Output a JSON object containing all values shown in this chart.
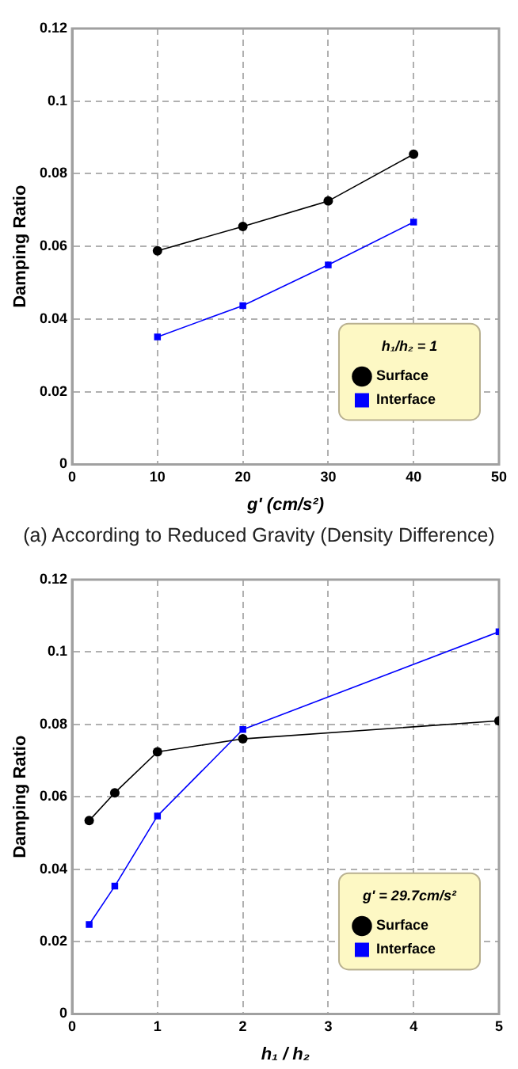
{
  "chart_data": [
    {
      "type": "line",
      "xlabel": "g' (cm/s²)",
      "ylabel": "Damping Ratio",
      "legend_title": "h₁/h₂ = 1",
      "x": [
        10,
        20,
        30,
        40
      ],
      "series": [
        {
          "name": "Surface",
          "color": "#000000",
          "marker": "circle",
          "values": [
            0.0588,
            0.0655,
            0.0725,
            0.0854
          ]
        },
        {
          "name": "Interface",
          "color": "#0000ff",
          "marker": "square",
          "values": [
            0.0351,
            0.0437,
            0.0549,
            0.0667
          ]
        }
      ],
      "xlim": [
        0,
        50
      ],
      "xticks": [
        0,
        10,
        20,
        30,
        40,
        50
      ],
      "ylim": [
        0,
        0.12
      ],
      "yticks": [
        0,
        0.02,
        0.04,
        0.06,
        0.08,
        0.1,
        0.12
      ],
      "grid": true,
      "legend": "bottom right",
      "line_style": "solid",
      "annotations": [
        "(a) According to Reduced Gravity (Density Difference)"
      ]
    },
    {
      "type": "line",
      "xlabel": "h₁ / h₂",
      "ylabel": "Damping Ratio",
      "legend_title": "g' = 29.7cm/s²",
      "x": [
        0.2,
        0.5,
        1,
        2,
        5
      ],
      "series": [
        {
          "name": "Surface",
          "color": "#000000",
          "marker": "circle",
          "values": [
            0.0534,
            0.0611,
            0.0724,
            0.076,
            0.081
          ]
        },
        {
          "name": "Interface",
          "color": "#0000ff",
          "marker": "square",
          "values": [
            0.0247,
            0.0353,
            0.0547,
            0.0786,
            0.1056
          ]
        }
      ],
      "xlim": [
        0,
        5
      ],
      "xticks": [
        0,
        1,
        2,
        3,
        4,
        5
      ],
      "ylim": [
        0,
        0.12
      ],
      "yticks": [
        0,
        0.02,
        0.04,
        0.06,
        0.08,
        0.1,
        0.12
      ],
      "grid": true,
      "legend": "bottom right",
      "line_style": "solid"
    }
  ]
}
